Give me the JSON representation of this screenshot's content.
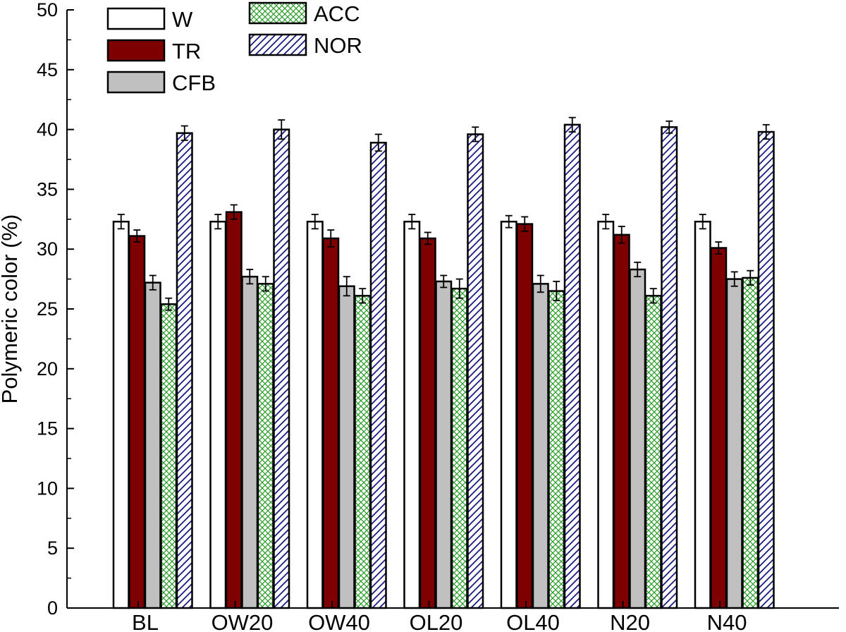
{
  "chart_data": {
    "type": "bar",
    "title": "",
    "xlabel": "",
    "ylabel": "Polymeric color (%)",
    "ylim": [
      0,
      50
    ],
    "yticks": [
      0,
      5,
      10,
      15,
      20,
      25,
      30,
      35,
      40,
      45,
      50
    ],
    "grid": false,
    "legend_position": "top-left",
    "categories": [
      "BL",
      "OW20",
      "OW40",
      "OL20",
      "OL40",
      "N20",
      "N40"
    ],
    "series": [
      {
        "name": "W",
        "fill": "#ffffff",
        "pattern": "none",
        "values": [
          32.3,
          32.3,
          32.3,
          32.3,
          32.3,
          32.3,
          32.3
        ],
        "errors": [
          0.6,
          0.6,
          0.6,
          0.6,
          0.5,
          0.6,
          0.6
        ]
      },
      {
        "name": "TR",
        "fill": "#7f0000",
        "pattern": "none",
        "values": [
          31.1,
          33.1,
          30.9,
          30.9,
          32.1,
          31.2,
          30.1
        ],
        "errors": [
          0.5,
          0.6,
          0.7,
          0.5,
          0.6,
          0.7,
          0.5
        ]
      },
      {
        "name": "CFB",
        "fill": "#c0c0c0",
        "pattern": "none",
        "values": [
          27.2,
          27.7,
          26.9,
          27.3,
          27.1,
          28.3,
          27.5
        ],
        "errors": [
          0.6,
          0.6,
          0.8,
          0.5,
          0.7,
          0.6,
          0.6
        ]
      },
      {
        "name": "ACC",
        "fill": "#ffffff",
        "pattern": "cross",
        "patternColor": "#2ca02c",
        "values": [
          25.4,
          27.1,
          26.1,
          26.7,
          26.5,
          26.1,
          27.6
        ],
        "errors": [
          0.5,
          0.6,
          0.6,
          0.8,
          0.8,
          0.6,
          0.6
        ]
      },
      {
        "name": "NOR",
        "fill": "#ffffff",
        "pattern": "diag",
        "patternColor": "#1a1a80",
        "values": [
          39.7,
          40.0,
          38.9,
          39.6,
          40.4,
          40.2,
          39.8
        ],
        "errors": [
          0.6,
          0.8,
          0.7,
          0.6,
          0.6,
          0.5,
          0.6
        ]
      }
    ]
  }
}
